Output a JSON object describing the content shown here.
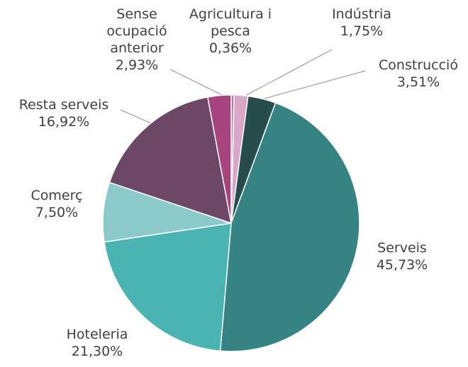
{
  "chart_data": {
    "type": "pie",
    "categories": [
      "Agricultura i pesca",
      "Indústria",
      "Construcció",
      "Serveis",
      "Hoteleria",
      "Comerç",
      "Resta serveis",
      "Sense ocupació anterior"
    ],
    "values": [
      0.36,
      1.75,
      3.51,
      45.73,
      21.3,
      7.5,
      16.92,
      2.93
    ],
    "value_labels": [
      "0,36%",
      "1,75%",
      "3,51%",
      "45,73%",
      "21,30%",
      "7,50%",
      "16,92%",
      "2,93%"
    ],
    "colors": [
      "#b7789f",
      "#d9a6c8",
      "#264c4e",
      "#368384",
      "#4ab4b3",
      "#8ccaca",
      "#6d4766",
      "#a6447e"
    ]
  }
}
